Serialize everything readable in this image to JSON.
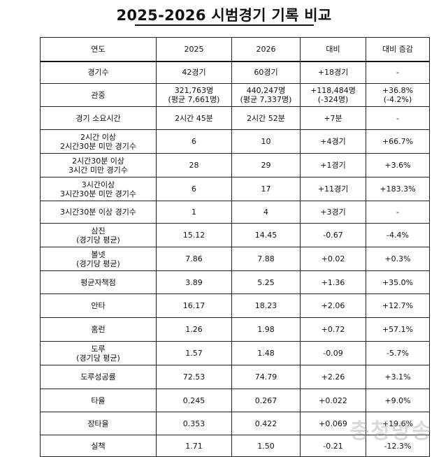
{
  "title": "2025-2026 시범경기 기록 비교",
  "header": [
    "연도",
    "2025",
    "2026",
    "대비",
    "대비 증감"
  ],
  "rows": [
    [
      [
        "경기수"
      ],
      [
        "42경기"
      ],
      [
        "60경기"
      ],
      [
        "+18경기"
      ],
      [
        "-"
      ]
    ],
    [
      [
        "관중"
      ],
      [
        "321,763명",
        "(평균 7,661명)"
      ],
      [
        "440,247명",
        "(평균 7,337명)"
      ],
      [
        "+118,484명",
        "(-324명)"
      ],
      [
        "+36.8%",
        "(-4.2%)"
      ]
    ],
    [
      [
        "경기 소요시간"
      ],
      [
        "2시간 45분"
      ],
      [
        "2시간 52분"
      ],
      [
        "+7분"
      ],
      [
        "-"
      ]
    ],
    [
      [
        "2시간 이상",
        "2시간30분 미만 경기수"
      ],
      [
        "6"
      ],
      [
        "10"
      ],
      [
        "+4경기"
      ],
      [
        "+66.7%"
      ]
    ],
    [
      [
        "2시간30분 이상",
        "3시간 미만 경기수"
      ],
      [
        "28"
      ],
      [
        "29"
      ],
      [
        "+1경기"
      ],
      [
        "+3.6%"
      ]
    ],
    [
      [
        "3시간이상",
        "3시간30분 미만 경기수"
      ],
      [
        "6"
      ],
      [
        "17"
      ],
      [
        "+11경기"
      ],
      [
        "+183.3%"
      ]
    ],
    [
      [
        "3시간30분 이상 경기수"
      ],
      [
        "1"
      ],
      [
        "4"
      ],
      [
        "+3경기"
      ],
      [
        "-"
      ]
    ],
    [
      [
        "삼진",
        "(경기당 평균)"
      ],
      [
        "15.12"
      ],
      [
        "14.45"
      ],
      [
        "-0.67"
      ],
      [
        "-4.4%"
      ]
    ],
    [
      [
        "볼넷",
        "(경기당 평균)"
      ],
      [
        "7.86"
      ],
      [
        "7.88"
      ],
      [
        "+0.02"
      ],
      [
        "+0.3%"
      ]
    ],
    [
      [
        "평균자책점"
      ],
      [
        "3.89"
      ],
      [
        "5.25"
      ],
      [
        "+1.36"
      ],
      [
        "+35.0%"
      ]
    ],
    [
      [
        "안타"
      ],
      [
        "16.17"
      ],
      [
        "18.23"
      ],
      [
        "+2.06"
      ],
      [
        "+12.7%"
      ]
    ],
    [
      [
        "홈런"
      ],
      [
        "1.26"
      ],
      [
        "1.98"
      ],
      [
        "+0.72"
      ],
      [
        "+57.1%"
      ]
    ],
    [
      [
        "도루",
        "(경기당 평균)"
      ],
      [
        "1.57"
      ],
      [
        "1.48"
      ],
      [
        "-0.09"
      ],
      [
        "-5.7%"
      ]
    ],
    [
      [
        "도루성공률"
      ],
      [
        "72.53"
      ],
      [
        "74.79"
      ],
      [
        "+2.26"
      ],
      [
        "+3.1%"
      ]
    ],
    [
      [
        "타율"
      ],
      [
        "0.245"
      ],
      [
        "0.267"
      ],
      [
        "+0.022"
      ],
      [
        "+9.0%"
      ]
    ],
    [
      [
        "장타율"
      ],
      [
        "0.353"
      ],
      [
        "0.422"
      ],
      [
        "+0.069"
      ],
      [
        "+19.6%"
      ]
    ],
    [
      [
        "실책"
      ],
      [
        "1.71"
      ],
      [
        "1.50"
      ],
      [
        "-0.21"
      ],
      [
        "-12.3%"
      ]
    ]
  ],
  "watermark": "충청방송"
}
